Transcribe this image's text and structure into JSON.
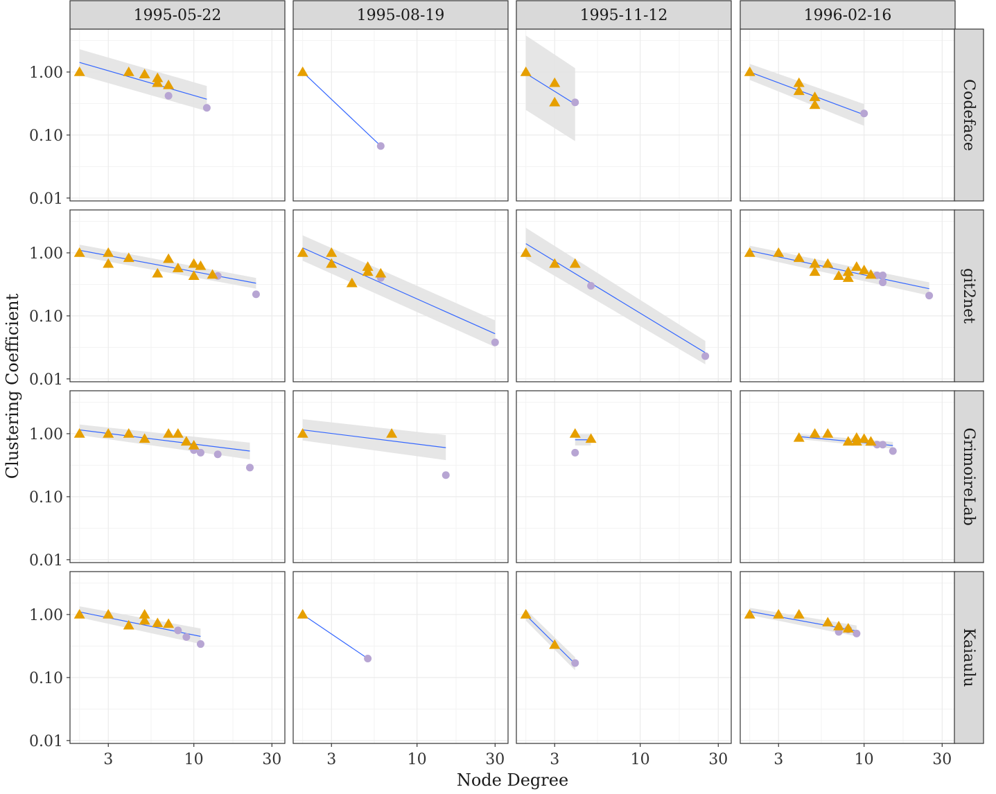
{
  "chart_data": {
    "type": "scatter",
    "title": "",
    "xlabel": "Node Degree",
    "ylabel": "Clustering Coefficient",
    "x_scale": "log10",
    "y_scale": "log10",
    "xlim": [
      1.75,
      36
    ],
    "ylim": [
      0.009,
      4.8
    ],
    "x_ticks": [
      {
        "value": 3,
        "label": "3"
      },
      {
        "value": 10,
        "label": "10"
      },
      {
        "value": 30,
        "label": "30"
      }
    ],
    "y_ticks": [
      {
        "value": 0.01,
        "label": "0.01"
      },
      {
        "value": 0.1,
        "label": "0.10"
      },
      {
        "value": 1,
        "label": "1.00"
      }
    ],
    "columns": [
      "1995-05-22",
      "1995-08-19",
      "1995-11-12",
      "1996-02-16"
    ],
    "rows": [
      "Codeface",
      "git2net",
      "GrimoireLab",
      "Kaiaulu"
    ],
    "colors": {
      "triangle": "#E69F00",
      "circle": "#B7A5D3",
      "fit_line": "#3366FF",
      "ribbon": "#E3E3E3",
      "strip_bg": "#D9D9D9",
      "grid": "#EBEBEB",
      "panel_border": "#333333"
    },
    "legend": {
      "visible": false
    },
    "series": [
      {
        "name": "triangle",
        "marker": "triangle"
      },
      {
        "name": "circle",
        "marker": "circle"
      }
    ],
    "panels": [
      {
        "row": "Codeface",
        "column": "1995-05-22",
        "triangles": [
          [
            2,
            1.0
          ],
          [
            4,
            1.0
          ],
          [
            5,
            0.92
          ],
          [
            6,
            0.8
          ],
          [
            6,
            0.67
          ],
          [
            7,
            0.62
          ]
        ],
        "circles": [
          [
            7,
            0.42
          ],
          [
            12,
            0.27
          ]
        ],
        "fit": {
          "x": [
            2,
            12
          ],
          "y": [
            1.42,
            0.37
          ],
          "ribbon_lower": [
            0.9,
            0.24
          ],
          "ribbon_upper": [
            2.3,
            0.6
          ]
        }
      },
      {
        "row": "Codeface",
        "column": "1995-08-19",
        "triangles": [
          [
            2,
            1.0
          ]
        ],
        "circles": [
          [
            6,
            0.067
          ]
        ],
        "fit": {
          "x": [
            2,
            6
          ],
          "y": [
            1.0,
            0.067
          ]
        }
      },
      {
        "row": "Codeface",
        "column": "1995-11-12",
        "triangles": [
          [
            2,
            1.0
          ],
          [
            3,
            0.67
          ],
          [
            3,
            0.33
          ]
        ],
        "circles": [
          [
            4,
            0.33
          ]
        ],
        "fit": {
          "x": [
            2,
            4
          ],
          "y": [
            0.95,
            0.31
          ],
          "ribbon_lower": [
            0.25,
            0.08
          ],
          "ribbon_upper": [
            3.8,
            1.15
          ]
        }
      },
      {
        "row": "Codeface",
        "column": "1996-02-16",
        "triangles": [
          [
            2,
            1.0
          ],
          [
            4,
            0.67
          ],
          [
            4,
            0.5
          ],
          [
            5,
            0.4
          ],
          [
            5,
            0.3
          ]
        ],
        "circles": [
          [
            10,
            0.22
          ]
        ],
        "fit": {
          "x": [
            2,
            10
          ],
          "y": [
            1.0,
            0.21
          ],
          "ribbon_lower": [
            0.75,
            0.14
          ],
          "ribbon_upper": [
            1.35,
            0.31
          ]
        }
      },
      {
        "row": "git2net",
        "column": "1995-05-22",
        "triangles": [
          [
            2,
            1.0
          ],
          [
            3,
            1.0
          ],
          [
            3,
            0.67
          ],
          [
            4,
            0.83
          ],
          [
            6,
            0.47
          ],
          [
            7,
            0.8
          ],
          [
            8,
            0.57
          ],
          [
            10,
            0.67
          ],
          [
            10,
            0.43
          ],
          [
            11,
            0.62
          ],
          [
            13,
            0.45
          ]
        ],
        "circles": [
          [
            14,
            0.43
          ],
          [
            24,
            0.22
          ]
        ],
        "fit": {
          "x": [
            2,
            24
          ],
          "y": [
            1.1,
            0.33
          ],
          "ribbon_lower": [
            0.88,
            0.27
          ],
          "ribbon_upper": [
            1.35,
            0.4
          ]
        }
      },
      {
        "row": "git2net",
        "column": "1995-08-19",
        "triangles": [
          [
            2,
            1.0
          ],
          [
            3,
            1.0
          ],
          [
            3,
            0.67
          ],
          [
            4,
            0.33
          ],
          [
            5,
            0.6
          ],
          [
            5,
            0.5
          ],
          [
            6,
            0.47
          ]
        ],
        "circles": [
          [
            6,
            0.4
          ],
          [
            30,
            0.038
          ]
        ],
        "fit": {
          "x": [
            2,
            30
          ],
          "y": [
            1.2,
            0.052
          ],
          "ribbon_lower": [
            0.75,
            0.032
          ],
          "ribbon_upper": [
            1.9,
            0.085
          ]
        }
      },
      {
        "row": "git2net",
        "column": "1995-11-12",
        "triangles": [
          [
            2,
            1.0
          ],
          [
            3,
            0.67
          ],
          [
            4,
            0.67
          ]
        ],
        "circles": [
          [
            5,
            0.3
          ],
          [
            25,
            0.023
          ]
        ],
        "fit": {
          "x": [
            2,
            25
          ],
          "y": [
            1.4,
            0.026
          ],
          "ribbon_lower": [
            0.8,
            0.017
          ],
          "ribbon_upper": [
            2.5,
            0.04
          ]
        }
      },
      {
        "row": "git2net",
        "column": "1996-02-16",
        "triangles": [
          [
            2,
            1.0
          ],
          [
            3,
            1.0
          ],
          [
            4,
            0.83
          ],
          [
            5,
            0.67
          ],
          [
            5,
            0.5
          ],
          [
            6,
            0.67
          ],
          [
            7,
            0.43
          ],
          [
            8,
            0.5
          ],
          [
            8,
            0.4
          ],
          [
            9,
            0.6
          ],
          [
            10,
            0.53
          ],
          [
            11,
            0.45
          ]
        ],
        "circles": [
          [
            12,
            0.44
          ],
          [
            13,
            0.44
          ],
          [
            13,
            0.34
          ],
          [
            25,
            0.21
          ]
        ],
        "fit": {
          "x": [
            2,
            25
          ],
          "y": [
            1.08,
            0.27
          ],
          "ribbon_lower": [
            0.9,
            0.21
          ],
          "ribbon_upper": [
            1.3,
            0.34
          ]
        }
      },
      {
        "row": "GrimoireLab",
        "column": "1995-05-22",
        "triangles": [
          [
            2,
            1.0
          ],
          [
            3,
            1.0
          ],
          [
            4,
            1.0
          ],
          [
            5,
            0.83
          ],
          [
            7,
            1.0
          ],
          [
            8,
            1.0
          ],
          [
            9,
            0.75
          ],
          [
            10,
            0.65
          ]
        ],
        "circles": [
          [
            10,
            0.55
          ],
          [
            11,
            0.5
          ],
          [
            14,
            0.47
          ],
          [
            22,
            0.29
          ]
        ],
        "fit": {
          "x": [
            2,
            22
          ],
          "y": [
            1.15,
            0.53
          ],
          "ribbon_lower": [
            0.95,
            0.39
          ],
          "ribbon_upper": [
            1.4,
            0.72
          ]
        }
      },
      {
        "row": "GrimoireLab",
        "column": "1995-08-19",
        "triangles": [
          [
            2,
            1.0
          ],
          [
            7,
            1.0
          ]
        ],
        "circles": [
          [
            15,
            0.22
          ]
        ],
        "fit": {
          "x": [
            2,
            15
          ],
          "y": [
            1.15,
            0.6
          ],
          "ribbon_lower": [
            0.78,
            0.38
          ],
          "ribbon_upper": [
            1.7,
            0.95
          ]
        }
      },
      {
        "row": "GrimoireLab",
        "column": "1995-11-12",
        "triangles": [
          [
            4,
            1.0
          ],
          [
            5,
            0.83
          ]
        ],
        "circles": [
          [
            4,
            0.5
          ]
        ],
        "fit": {
          "x": [
            4,
            5
          ],
          "y": [
            0.8,
            0.8
          ],
          "ribbon_lower": [
            0.65,
            0.65
          ],
          "ribbon_upper": [
            0.98,
            0.98
          ]
        }
      },
      {
        "row": "GrimoireLab",
        "column": "1996-02-16",
        "triangles": [
          [
            4,
            0.86
          ],
          [
            5,
            1.0
          ],
          [
            6,
            1.0
          ],
          [
            8,
            0.75
          ],
          [
            9,
            0.86
          ],
          [
            9,
            0.75
          ],
          [
            10,
            0.83
          ],
          [
            11,
            0.75
          ]
        ],
        "circles": [
          [
            12,
            0.67
          ],
          [
            13,
            0.67
          ],
          [
            15,
            0.53
          ]
        ],
        "fit": {
          "x": [
            4,
            15
          ],
          "y": [
            0.9,
            0.65
          ],
          "ribbon_lower": [
            0.82,
            0.58
          ],
          "ribbon_upper": [
            0.99,
            0.74
          ]
        }
      },
      {
        "row": "Kaiaulu",
        "column": "1995-05-22",
        "triangles": [
          [
            2,
            1.0
          ],
          [
            3,
            1.0
          ],
          [
            4,
            0.67
          ],
          [
            5,
            1.0
          ],
          [
            5,
            0.8
          ],
          [
            6,
            0.73
          ],
          [
            7,
            0.71
          ]
        ],
        "circles": [
          [
            8,
            0.56
          ],
          [
            9,
            0.44
          ],
          [
            11,
            0.34
          ]
        ],
        "fit": {
          "x": [
            2,
            11
          ],
          "y": [
            1.1,
            0.45
          ],
          "ribbon_lower": [
            0.9,
            0.34
          ],
          "ribbon_upper": [
            1.35,
            0.6
          ]
        }
      },
      {
        "row": "Kaiaulu",
        "column": "1995-08-19",
        "triangles": [
          [
            2,
            1.0
          ]
        ],
        "circles": [
          [
            5,
            0.2
          ]
        ],
        "fit": {
          "x": [
            2,
            5
          ],
          "y": [
            1.0,
            0.2
          ]
        }
      },
      {
        "row": "Kaiaulu",
        "column": "1995-11-12",
        "triangles": [
          [
            2,
            1.0
          ],
          [
            3,
            0.33
          ]
        ],
        "circles": [
          [
            4,
            0.17
          ]
        ],
        "fit": {
          "x": [
            2,
            4
          ],
          "y": [
            0.98,
            0.165
          ],
          "ribbon_lower": [
            0.8,
            0.13
          ],
          "ribbon_upper": [
            1.2,
            0.21
          ]
        }
      },
      {
        "row": "Kaiaulu",
        "column": "1996-02-16",
        "triangles": [
          [
            2,
            1.0
          ],
          [
            3,
            1.0
          ],
          [
            4,
            1.0
          ],
          [
            6,
            0.75
          ],
          [
            7,
            0.65
          ],
          [
            8,
            0.6
          ]
        ],
        "circles": [
          [
            7,
            0.53
          ],
          [
            8,
            0.58
          ],
          [
            9,
            0.5
          ]
        ],
        "fit": {
          "x": [
            2,
            9
          ],
          "y": [
            1.12,
            0.55
          ],
          "ribbon_lower": [
            0.98,
            0.45
          ],
          "ribbon_upper": [
            1.28,
            0.67
          ]
        }
      }
    ]
  }
}
